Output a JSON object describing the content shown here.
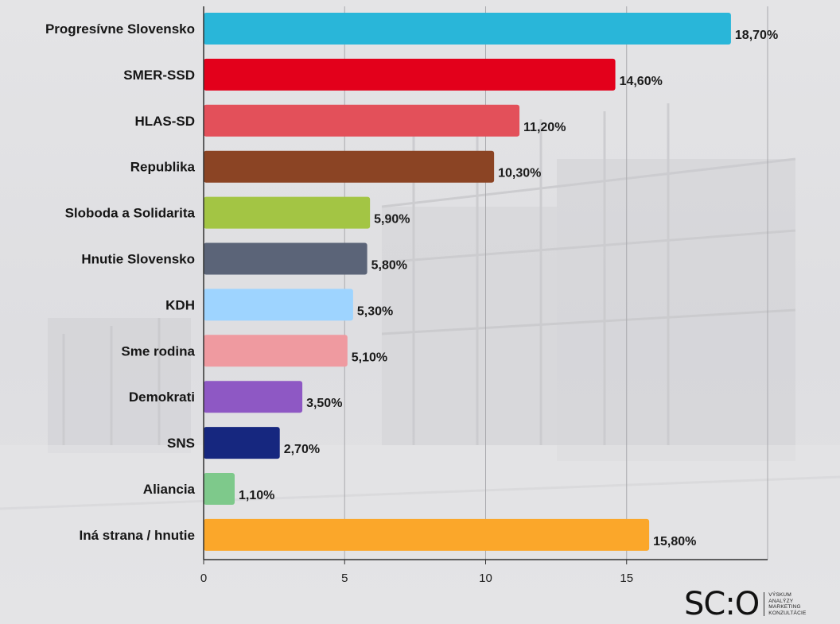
{
  "chart_data": {
    "type": "bar",
    "orientation": "horizontal",
    "categories": [
      "Progresívne Slovensko",
      "SMER-SSD",
      "HLAS-SD",
      "Republika",
      "Sloboda a Solidarita",
      "Hnutie Slovensko",
      "KDH",
      "Sme rodina",
      "Demokrati",
      "SNS",
      "Aliancia",
      "Iná strana  / hnutie"
    ],
    "values": [
      18.7,
      14.6,
      11.2,
      10.3,
      5.9,
      5.8,
      5.3,
      5.1,
      3.5,
      2.7,
      1.1,
      15.8
    ],
    "value_labels": [
      "18,70%",
      "14,60%",
      "11,20%",
      "10,30%",
      "5,90%",
      "5,80%",
      "5,30%",
      "5,10%",
      "3,50%",
      "2,70%",
      "1,10%",
      "15,80%"
    ],
    "colors": [
      "#29b6d9",
      "#e3001b",
      "#e3505a",
      "#8b4424",
      "#a3c544",
      "#5b6478",
      "#9ed4ff",
      "#ef9aa0",
      "#8e58c4",
      "#16277f",
      "#7ec98b",
      "#fba72a"
    ],
    "xlim": [
      0,
      20
    ],
    "xticks": [
      0,
      5,
      10,
      15
    ],
    "xtick_labels": [
      "0",
      "5",
      "10",
      "15"
    ],
    "grid": "vertical",
    "legend": "none"
  },
  "logo": {
    "mark": "SC:O",
    "lines": [
      "VÝSKUM",
      "ANALÝZY",
      "MARKETING",
      "KONZULTÁCIE"
    ]
  }
}
